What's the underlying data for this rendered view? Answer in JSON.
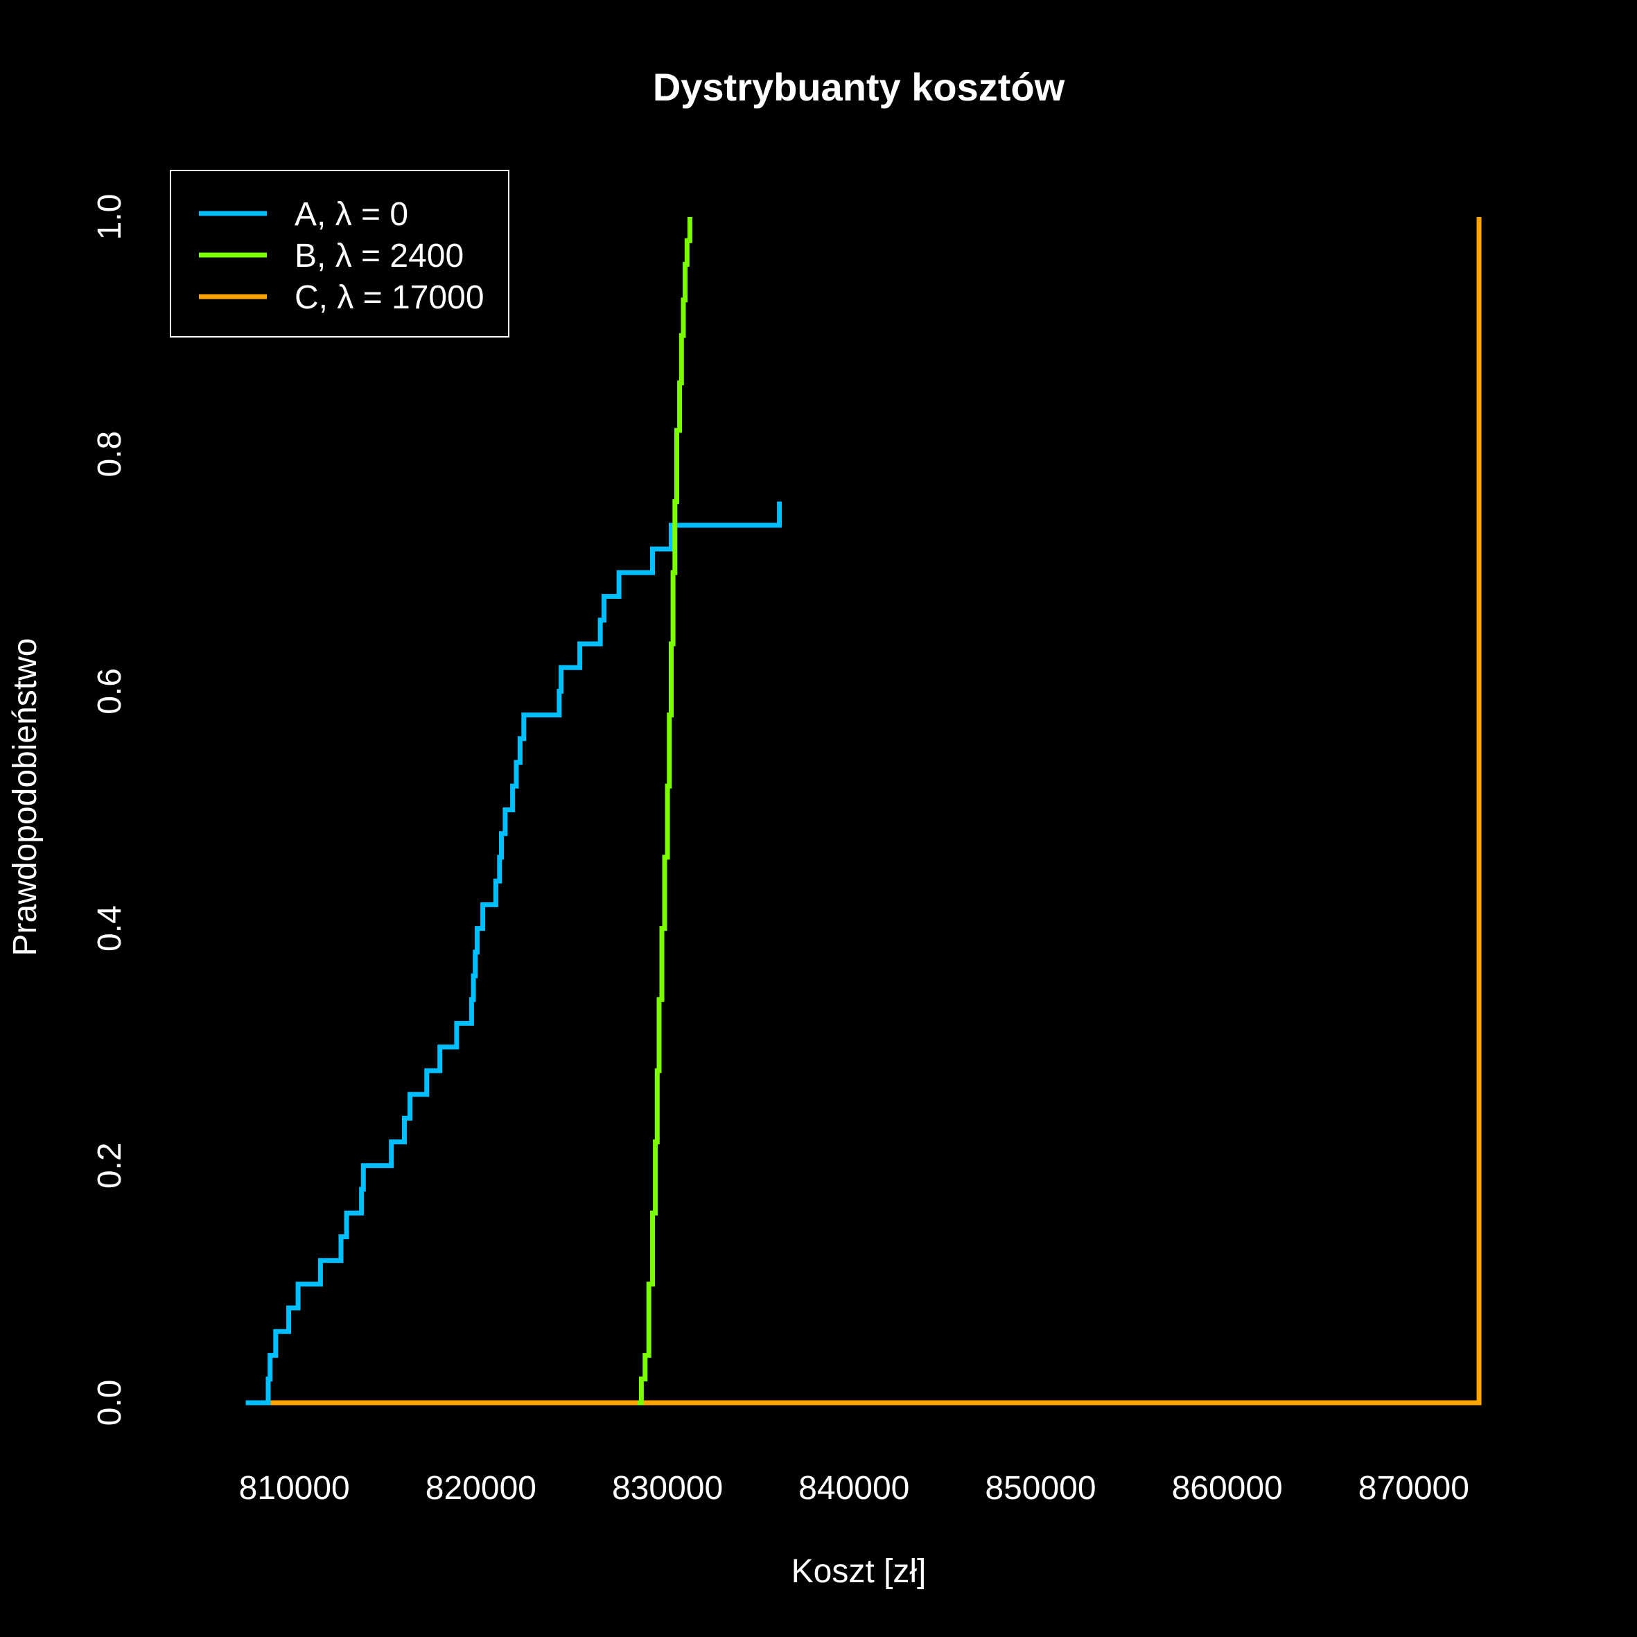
{
  "chart_data": {
    "type": "line",
    "step": true,
    "title": "Dystrybuanty kosztów",
    "xlabel": "Koszt [zł]",
    "ylabel": "Prawdopodobieństwo",
    "xlim": [
      806000,
      874500
    ],
    "ylim": [
      0,
      1
    ],
    "x_ticks": [
      810000,
      820000,
      830000,
      840000,
      850000,
      860000,
      870000
    ],
    "x_tick_labels": [
      "810000",
      "820000",
      "830000",
      "840000",
      "850000",
      "860000",
      "870000"
    ],
    "y_ticks": [
      0,
      0.2,
      0.4,
      0.6,
      0.8,
      1
    ],
    "y_tick_labels": [
      "0.0",
      "0.2",
      "0.4",
      "0.6",
      "0.8",
      "1.0"
    ],
    "grid": false,
    "legend_position": "top-left",
    "background": "#000000",
    "foreground": "#ffffff",
    "series": [
      {
        "name": "A, λ = 0",
        "color": "#00bfff",
        "x_start": 807400,
        "x": [
          808600,
          808700,
          809000,
          809700,
          810200,
          811400,
          812500,
          812800,
          813600,
          813700,
          815200,
          815900,
          816200,
          817100,
          817800,
          818700,
          819500,
          819600,
          819700,
          819800,
          820100,
          820800,
          821000,
          821100,
          821300,
          821700,
          821900,
          822100,
          822300,
          824200,
          824300,
          825300,
          826400,
          826600,
          827400,
          829200,
          830200,
          836000
        ],
        "y": [
          0.02,
          0.04,
          0.06,
          0.08,
          0.1,
          0.12,
          0.14,
          0.16,
          0.18,
          0.2,
          0.22,
          0.24,
          0.26,
          0.28,
          0.3,
          0.32,
          0.34,
          0.36,
          0.38,
          0.4,
          0.42,
          0.44,
          0.46,
          0.48,
          0.5,
          0.52,
          0.54,
          0.56,
          0.58,
          0.6,
          0.62,
          0.64,
          0.66,
          0.68,
          0.7,
          0.72,
          0.74,
          0.76
        ]
      },
      {
        "name": "B, λ = 2400",
        "color": "#7cfc00",
        "x_start": 828400,
        "x": [
          828600,
          828800,
          829000,
          829200,
          829350,
          829450,
          829550,
          829700,
          829850,
          830000,
          830100,
          830200,
          830300,
          830400,
          830500,
          830650,
          830750,
          830850,
          830950,
          831050,
          831200
        ],
        "y": [
          0.02,
          0.04,
          0.1,
          0.16,
          0.22,
          0.28,
          0.34,
          0.4,
          0.46,
          0.52,
          0.58,
          0.64,
          0.7,
          0.76,
          0.82,
          0.86,
          0.9,
          0.93,
          0.96,
          0.98,
          1.0
        ]
      },
      {
        "name": "C, λ = 17000",
        "color": "#ffa500",
        "x_start": 807400,
        "x": [
          873500
        ],
        "y": [
          1.0
        ]
      }
    ]
  }
}
